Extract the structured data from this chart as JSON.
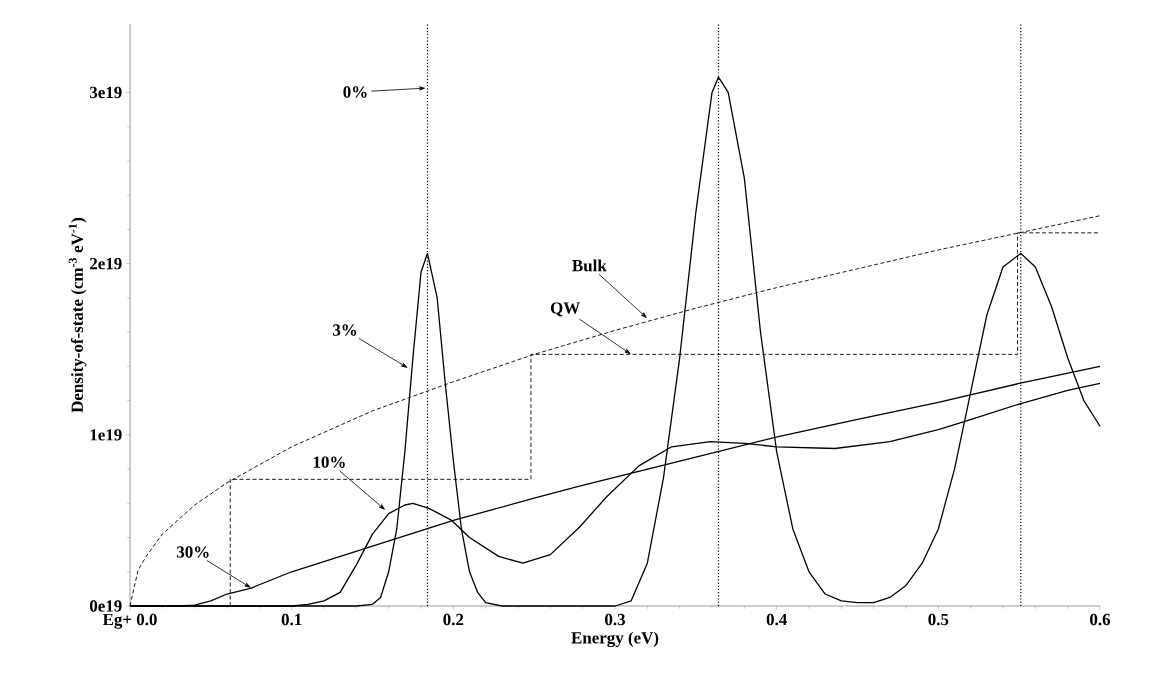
{
  "chart_data": {
    "type": "line",
    "xlabel": "Energy (eV)",
    "ylabel": "Density-of-state (cm$^{-3}$ eV$^{-1}$)",
    "xlim": [
      0,
      0.6
    ],
    "ylim": [
      0,
      3.4e+19
    ],
    "xticks": [
      {
        "value": 0,
        "label": "Eg+ 0.0"
      },
      0.1,
      0.2,
      0.3,
      0.4,
      0.5,
      0.6
    ],
    "yticks": [
      {
        "value": 0,
        "label": "0e19"
      },
      {
        "value": 1e+19,
        "label": "1e19"
      },
      {
        "value": 2e+19,
        "label": "2e19"
      },
      {
        "value": 3e+19,
        "label": "3e19"
      }
    ],
    "grid": false,
    "marker": "none",
    "series": [
      {
        "color": "#000000",
        "line_style": "solid",
        "x": [
          0,
          0.14,
          0.15,
          0.155,
          0.16,
          0.165,
          0.17,
          0.175,
          0.18,
          0.184,
          0.19,
          0.195,
          0.2,
          0.205,
          0.21,
          0.215,
          0.22,
          0.23,
          0.3,
          0.31,
          0.32,
          0.33,
          0.34,
          0.35,
          0.36,
          0.364,
          0.37,
          0.38,
          0.39,
          0.4,
          0.41,
          0.42,
          0.43,
          0.44,
          0.45,
          0.46,
          0.47,
          0.48,
          0.49,
          0.5,
          0.51,
          0.52,
          0.53,
          0.54,
          0.551,
          0.56,
          0.57,
          0.58,
          0.59,
          0.6
        ],
        "values": [
          0,
          0,
          1e+17,
          5e+17,
          2e+18,
          4.5e+18,
          9e+18,
          1.45e+19,
          1.95e+19,
          2.06e+19,
          1.8e+19,
          1.3e+19,
          8.5e+18,
          4.5e+18,
          2e+18,
          8e+17,
          2e+17,
          0,
          0,
          3e+17,
          2.5e+18,
          7.5e+18,
          1.45e+19,
          2.3e+19,
          3e+19,
          3.09e+19,
          3e+19,
          2.5e+19,
          1.6e+19,
          9e+18,
          4.5e+18,
          2e+18,
          7e+17,
          3e+17,
          2e+17,
          2e+17,
          5e+17,
          1.2e+18,
          2.5e+18,
          4.5e+18,
          8e+18,
          1.25e+19,
          1.7e+19,
          1.98e+19,
          2.06e+19,
          1.98e+19,
          1.75e+19,
          1.45e+19,
          1.2e+19,
          1.05e+19
        ]
      },
      {
        "color": "#000000",
        "line_style": "solid",
        "x": [
          0,
          0.1,
          0.11,
          0.12,
          0.13,
          0.14,
          0.15,
          0.16,
          0.17,
          0.175,
          0.185,
          0.199,
          0.21,
          0.228,
          0.243,
          0.26,
          0.278,
          0.295,
          0.315,
          0.335,
          0.359,
          0.38,
          0.4,
          0.436,
          0.47,
          0.5,
          0.517,
          0.55,
          0.58,
          0.6
        ],
        "values": [
          0,
          0,
          1e+17,
          3e+17,
          8e+17,
          2.4e+18,
          4.2e+18,
          5.4e+18,
          5.9e+18,
          6e+18,
          5.7e+18,
          5e+18,
          4e+18,
          2.9e+18,
          2.5e+18,
          3e+18,
          4.6e+18,
          6.4e+18,
          8.2e+18,
          9.3e+18,
          9.6e+18,
          9.5e+18,
          9.3e+18,
          9.2e+18,
          9.6e+18,
          1.03e+19,
          1.08e+19,
          1.18e+19,
          1.26e+19,
          1.3e+19
        ]
      },
      {
        "color": "#000000",
        "line_style": "solid",
        "x": [
          0,
          0.03,
          0.04,
          0.05,
          0.06,
          0.075,
          0.1,
          0.15,
          0.2,
          0.25,
          0.278,
          0.35,
          0.401,
          0.45,
          0.5,
          0.55,
          0.6
        ],
        "values": [
          0,
          0,
          5e+16,
          3e+17,
          7e+17,
          1.05e+18,
          2e+18,
          3.5e+18,
          5e+18,
          6.3e+18,
          7e+18,
          8.7e+18,
          9.9e+18,
          1.09e+19,
          1.19e+19,
          1.3e+19,
          1.4e+19
        ]
      },
      {
        "color": "#000000",
        "line_style": "dashed",
        "x": [
          0,
          0.005,
          0.01,
          0.02,
          0.04,
          0.06,
          0.1,
          0.15,
          0.2,
          0.25,
          0.3,
          0.35,
          0.4,
          0.45,
          0.5,
          0.55,
          0.6
        ],
        "values": [
          0,
          2.1e+18,
          2.9e+18,
          4.2e+18,
          5.9e+18,
          7.2e+18,
          9.3e+18,
          1.14e+19,
          1.31e+19,
          1.47e+19,
          1.61e+19,
          1.74e+19,
          1.86e+19,
          1.97e+19,
          2.08e+19,
          2.18e+19,
          2.28e+19
        ]
      },
      {
        "type": "step",
        "color": "#000000",
        "line_style": "dashed",
        "x": [
          0.062,
          0.062,
          0.248,
          0.549,
          0.6
        ],
        "values": [
          0,
          7.4e+18,
          1.47e+19,
          2.18e+19,
          2.18e+19
        ]
      }
    ],
    "ref_lines": [
      {
        "axis": "x",
        "value": 0.184,
        "color": "#000000",
        "line_style": "dotted",
        "label": "0%"
      },
      {
        "axis": "x",
        "value": 0.364,
        "color": "#000000",
        "line_style": "dotted"
      },
      {
        "axis": "x",
        "value": 0.551,
        "color": "#000000",
        "line_style": "dotted"
      }
    ],
    "annotations": [
      {
        "text": "3%",
        "x": 0.172,
        "y": 1.39e+19
      },
      {
        "text": "10%",
        "x": 0.158,
        "y": 5.6e+18
      },
      {
        "text": "30%",
        "x": 0.075,
        "y": 1.05e+18
      },
      {
        "text": "Bulk",
        "x": 0.32,
        "y": 1.68e+19
      },
      {
        "text": "QW",
        "x": 0.31,
        "y": 1.47e+19
      }
    ]
  }
}
